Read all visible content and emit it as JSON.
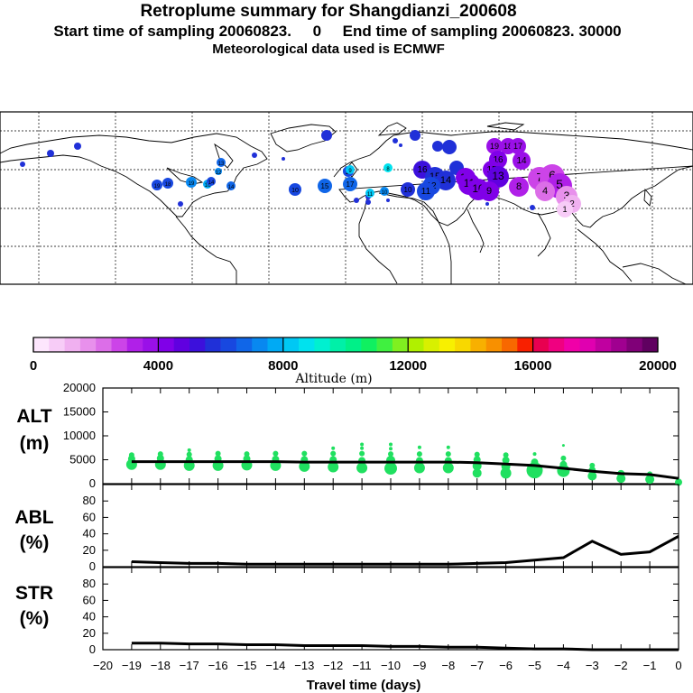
{
  "header": {
    "title": "Retroplume summary for Shangdianzi_200608",
    "line2": "Start time of sampling 20060823.     0     End time of sampling 20060823. 30000",
    "line3": "Meteorological data used is ECMWF"
  },
  "colorbar": {
    "label": "Altitude (m)",
    "ticks": [
      "0",
      "4000",
      "8000",
      "12000",
      "16000",
      "20000"
    ],
    "colors": [
      "#fde6fd",
      "#f7ccf7",
      "#f0b0f0",
      "#e890ec",
      "#dc6ee8",
      "#cc44e8",
      "#b020e8",
      "#9a10e8",
      "#8000e8",
      "#6000e0",
      "#3c10dc",
      "#2030d8",
      "#1848e0",
      "#1066e8",
      "#0888f0",
      "#00aaf4",
      "#00c8f4",
      "#00e2ee",
      "#00f0d0",
      "#00f0a8",
      "#00f088",
      "#10f060",
      "#40f040",
      "#80f020",
      "#b0f000",
      "#d8f000",
      "#f8f000",
      "#f8d800",
      "#f8b000",
      "#f89000",
      "#f86800",
      "#f82000",
      "#e80050",
      "#f00080",
      "#f000a8",
      "#e000b0",
      "#c000a0",
      "#a00090",
      "#800078",
      "#600060"
    ]
  },
  "map": {
    "labels": [
      {
        "n": "19",
        "c": "#9a10e8"
      },
      {
        "n": "18",
        "c": "#9a10e8"
      },
      {
        "n": "17",
        "c": "#9a10e8"
      },
      {
        "n": "16",
        "c": "#8000e8"
      },
      {
        "n": "15",
        "c": "#8000e8"
      },
      {
        "n": "14",
        "c": "#9a10e8"
      },
      {
        "n": "13",
        "c": "#6000e0"
      },
      {
        "n": "12",
        "c": "#8000e8"
      },
      {
        "n": "11",
        "c": "#8000e8"
      },
      {
        "n": "10",
        "c": "#8000e8"
      },
      {
        "n": "9",
        "c": "#8000e8"
      },
      {
        "n": "8",
        "c": "#b020e8"
      },
      {
        "n": "7",
        "c": "#cc44e8"
      },
      {
        "n": "6",
        "c": "#cc44e8"
      },
      {
        "n": "5",
        "c": "#b020e8"
      },
      {
        "n": "4",
        "c": "#dc6ee8"
      },
      {
        "n": "3",
        "c": "#e890ec"
      },
      {
        "n": "2",
        "c": "#f0b0f0"
      },
      {
        "n": "1",
        "c": "#f7ccf7"
      },
      {
        "n": "16",
        "c": "#3c10dc"
      },
      {
        "n": "15",
        "c": "#2030d8"
      },
      {
        "n": "14",
        "c": "#2030d8"
      },
      {
        "n": "12",
        "c": "#1848e0"
      },
      {
        "n": "11",
        "c": "#1848e0"
      },
      {
        "n": "10",
        "c": "#2030d8"
      },
      {
        "n": "17",
        "c": "#1066e8"
      },
      {
        "n": "15",
        "c": "#1066e8"
      },
      {
        "n": "13",
        "c": "#1848e0"
      },
      {
        "n": "10",
        "c": "#0888f0"
      },
      {
        "n": "9",
        "c": "#00c8f4"
      },
      {
        "n": "8",
        "c": "#00e2ee"
      },
      {
        "n": "13",
        "c": "#1066e8"
      },
      {
        "n": "12",
        "c": "#0888f0"
      },
      {
        "n": "14",
        "c": "#1066e8"
      },
      {
        "n": "19",
        "c": "#1848e0"
      },
      {
        "n": "18",
        "c": "#1848e0"
      },
      {
        "n": "19",
        "c": "#0888f0"
      },
      {
        "n": "16",
        "c": "#00aaf4"
      },
      {
        "n": "11",
        "c": "#00c8f4"
      },
      {
        "n": "10",
        "c": "#1848e0"
      },
      {
        "n": "14",
        "c": "#1848e0"
      }
    ]
  },
  "chart_data": [
    {
      "type": "scatter",
      "panel": "ALT",
      "ylabel": "ALT\n(m)",
      "ylabel_lines": [
        "ALT",
        "(m)"
      ],
      "ylim": [
        0,
        20000
      ],
      "yticks": [
        "0",
        "5000",
        "10000",
        "15000",
        "20000"
      ],
      "line": {
        "x": [
          -19,
          -18,
          -17,
          -16,
          -15,
          -14,
          -13,
          -12,
          -11,
          -10,
          -9,
          -8,
          -7,
          -6,
          -5,
          -4,
          -3,
          -2,
          -1,
          0
        ],
        "y": [
          4600,
          4600,
          4600,
          4600,
          4600,
          4600,
          4500,
          4500,
          4500,
          4500,
          4500,
          4500,
          4400,
          4100,
          3800,
          3200,
          2600,
          2100,
          1900,
          1100
        ]
      },
      "points_color": "#20e060",
      "points": [
        {
          "x": -19,
          "y": 4000,
          "s": 6
        },
        {
          "x": -19,
          "y": 5200,
          "s": 4
        },
        {
          "x": -19,
          "y": 6000,
          "s": 3
        },
        {
          "x": -18,
          "y": 4000,
          "s": 6
        },
        {
          "x": -18,
          "y": 5300,
          "s": 4
        },
        {
          "x": -18,
          "y": 6200,
          "s": 3
        },
        {
          "x": -17,
          "y": 3800,
          "s": 6
        },
        {
          "x": -17,
          "y": 5000,
          "s": 4
        },
        {
          "x": -17,
          "y": 6100,
          "s": 3
        },
        {
          "x": -17,
          "y": 7000,
          "s": 2
        },
        {
          "x": -16,
          "y": 3800,
          "s": 6
        },
        {
          "x": -16,
          "y": 5200,
          "s": 4
        },
        {
          "x": -16,
          "y": 6300,
          "s": 3
        },
        {
          "x": -15,
          "y": 3900,
          "s": 6
        },
        {
          "x": -15,
          "y": 5200,
          "s": 4
        },
        {
          "x": -15,
          "y": 6200,
          "s": 3
        },
        {
          "x": -14,
          "y": 3800,
          "s": 6
        },
        {
          "x": -14,
          "y": 5100,
          "s": 4
        },
        {
          "x": -14,
          "y": 6300,
          "s": 3
        },
        {
          "x": -13,
          "y": 3600,
          "s": 6
        },
        {
          "x": -13,
          "y": 5000,
          "s": 4
        },
        {
          "x": -13,
          "y": 6300,
          "s": 3
        },
        {
          "x": -12,
          "y": 3500,
          "s": 6
        },
        {
          "x": -12,
          "y": 5000,
          "s": 4
        },
        {
          "x": -12,
          "y": 6300,
          "s": 3
        },
        {
          "x": -12,
          "y": 7400,
          "s": 2
        },
        {
          "x": -11,
          "y": 3300,
          "s": 6
        },
        {
          "x": -11,
          "y": 4800,
          "s": 4
        },
        {
          "x": -11,
          "y": 6300,
          "s": 3
        },
        {
          "x": -11,
          "y": 7400,
          "s": 2
        },
        {
          "x": -11,
          "y": 8200,
          "s": 2
        },
        {
          "x": -10,
          "y": 3200,
          "s": 7
        },
        {
          "x": -10,
          "y": 4900,
          "s": 5
        },
        {
          "x": -10,
          "y": 6200,
          "s": 3
        },
        {
          "x": -10,
          "y": 7300,
          "s": 2
        },
        {
          "x": -10,
          "y": 8200,
          "s": 2
        },
        {
          "x": -9,
          "y": 3300,
          "s": 6
        },
        {
          "x": -9,
          "y": 4800,
          "s": 4
        },
        {
          "x": -9,
          "y": 6200,
          "s": 3
        },
        {
          "x": -9,
          "y": 7600,
          "s": 2
        },
        {
          "x": -8,
          "y": 3300,
          "s": 6
        },
        {
          "x": -8,
          "y": 4800,
          "s": 4
        },
        {
          "x": -8,
          "y": 6200,
          "s": 3
        },
        {
          "x": -8,
          "y": 7600,
          "s": 2
        },
        {
          "x": -7,
          "y": 2200,
          "s": 5
        },
        {
          "x": -7,
          "y": 3700,
          "s": 5
        },
        {
          "x": -7,
          "y": 5000,
          "s": 4
        },
        {
          "x": -7,
          "y": 6100,
          "s": 3
        },
        {
          "x": -6,
          "y": 2200,
          "s": 6
        },
        {
          "x": -6,
          "y": 3600,
          "s": 5
        },
        {
          "x": -6,
          "y": 4900,
          "s": 4
        },
        {
          "x": -6,
          "y": 6000,
          "s": 3
        },
        {
          "x": -5,
          "y": 2800,
          "s": 9
        },
        {
          "x": -5,
          "y": 4500,
          "s": 4
        },
        {
          "x": -5,
          "y": 6200,
          "s": 2
        },
        {
          "x": -4,
          "y": 2700,
          "s": 7
        },
        {
          "x": -4,
          "y": 4000,
          "s": 4
        },
        {
          "x": -4,
          "y": 5300,
          "s": 3
        },
        {
          "x": -4,
          "y": 8000,
          "s": 1.5
        },
        {
          "x": -3,
          "y": 1600,
          "s": 5
        },
        {
          "x": -3,
          "y": 2800,
          "s": 4
        },
        {
          "x": -3,
          "y": 3800,
          "s": 3
        },
        {
          "x": -2,
          "y": 1100,
          "s": 5
        },
        {
          "x": -2,
          "y": 2100,
          "s": 4
        },
        {
          "x": -1,
          "y": 900,
          "s": 5
        },
        {
          "x": -1,
          "y": 2000,
          "s": 3
        },
        {
          "x": 0,
          "y": 300,
          "s": 4
        }
      ]
    },
    {
      "type": "line",
      "panel": "ABL",
      "ylabel": "ABL\n(%)",
      "ylabel_lines": [
        "ABL",
        "(%)"
      ],
      "ylim": [
        0,
        100
      ],
      "yticks": [
        "0",
        "20",
        "40",
        "60",
        "80"
      ],
      "x": [
        -19,
        -18,
        -17,
        -16,
        -15,
        -14,
        -13,
        -12,
        -11,
        -10,
        -9,
        -8,
        -7,
        -6,
        -5,
        -4,
        -3,
        -2,
        -1,
        0
      ],
      "y": [
        6,
        5,
        4,
        4,
        3,
        3,
        3,
        3,
        3,
        3,
        3,
        3,
        4,
        5,
        8,
        11,
        31,
        15,
        18,
        37
      ]
    },
    {
      "type": "line",
      "panel": "STR",
      "ylabel": "STR\n(%)",
      "ylabel_lines": [
        "STR",
        "(%)"
      ],
      "ylim": [
        0,
        100
      ],
      "yticks": [
        "0",
        "20",
        "40",
        "60",
        "80"
      ],
      "x": [
        -19,
        -18,
        -17,
        -16,
        -15,
        -14,
        -13,
        -12,
        -11,
        -10,
        -9,
        -8,
        -7,
        -6,
        -5,
        -4,
        -3,
        -2,
        -1,
        0
      ],
      "y": [
        8,
        8,
        7,
        7,
        6,
        6,
        5,
        5,
        5,
        4,
        4,
        3,
        3,
        2,
        1,
        1,
        0,
        0,
        0,
        0
      ],
      "xlabel": "Travel time (days)",
      "xticks": [
        "-20",
        "-19",
        "-18",
        "-17",
        "-16",
        "-15",
        "-14",
        "-13",
        "-12",
        "-11",
        "-10",
        "-9",
        "-8",
        "-7",
        "-6",
        "-5",
        "-4",
        "-3",
        "-2",
        "-1",
        "0"
      ]
    }
  ]
}
